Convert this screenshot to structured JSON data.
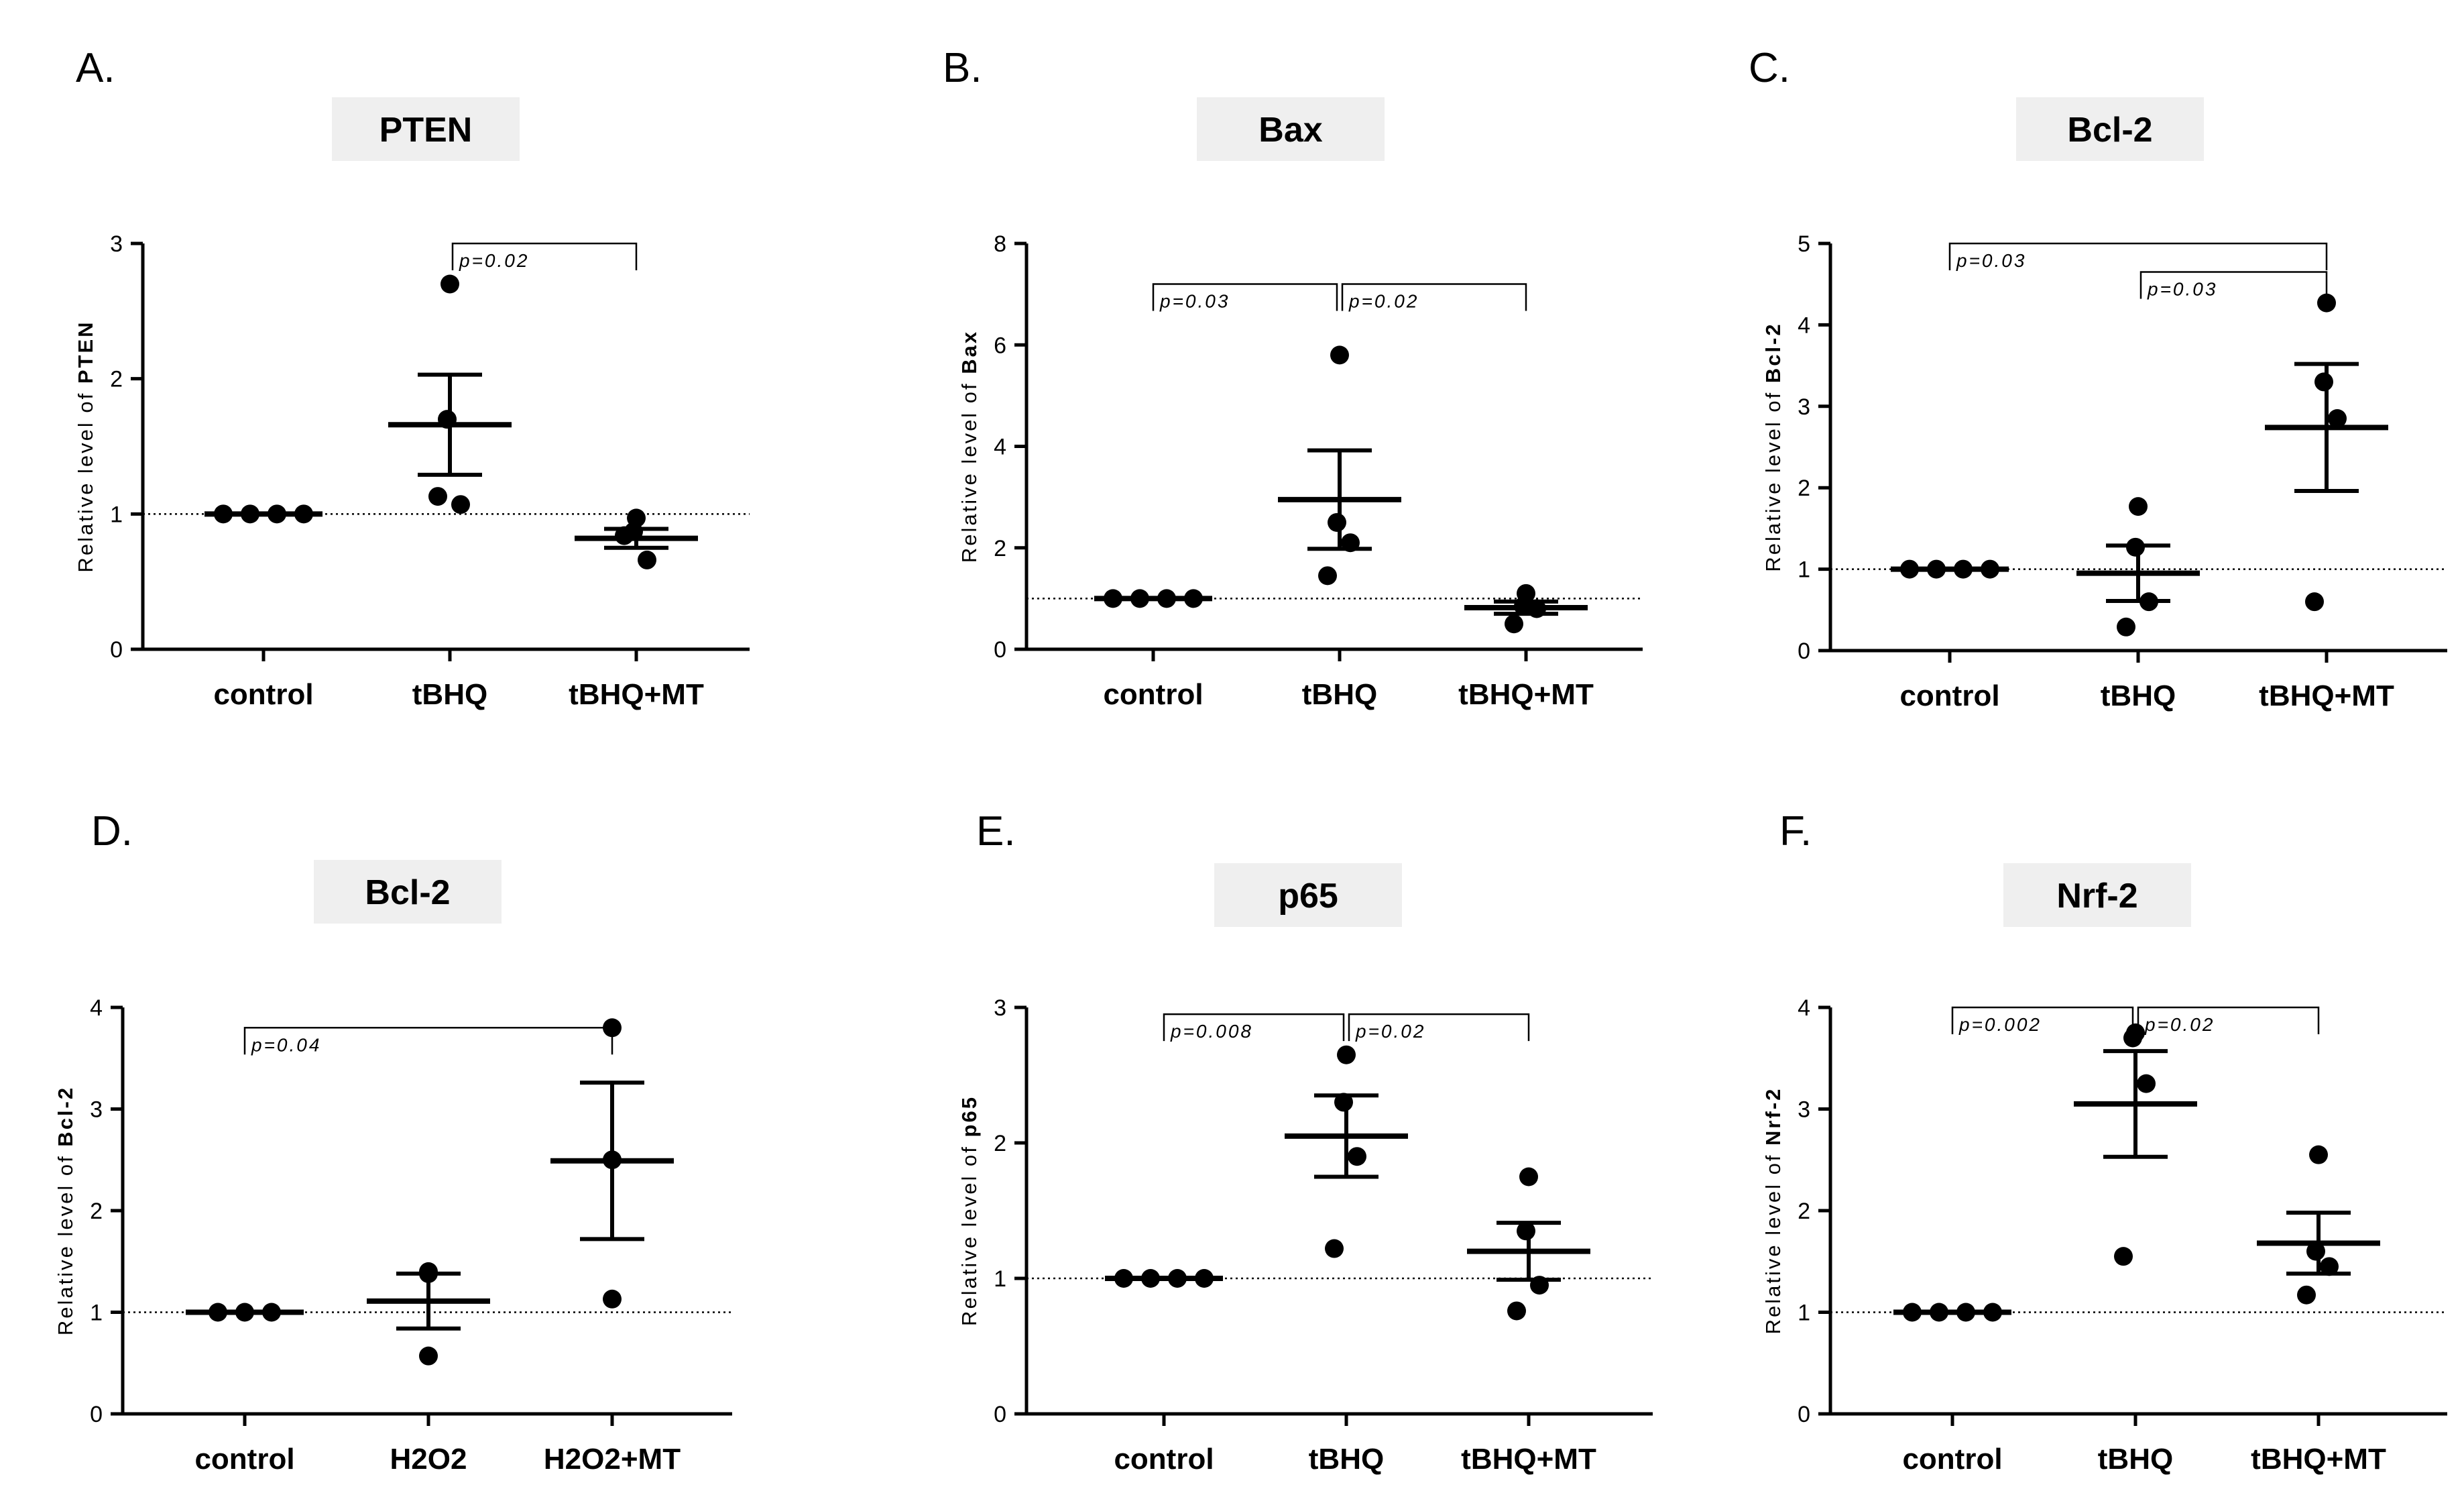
{
  "chart_data": [
    {
      "type": "scatter",
      "panel": "A.",
      "title": "PTEN",
      "ylabel_prefix": "Relative level of ",
      "ylabel_target": "PTEN",
      "ylim": [
        0,
        3
      ],
      "yticks": [
        0,
        1,
        2,
        3
      ],
      "categories": [
        "control",
        "tBHQ",
        "tBHQ+MT"
      ],
      "points": [
        [
          1,
          1,
          1,
          1
        ],
        [
          2.7,
          1.7,
          1.07,
          1.13
        ],
        [
          0.97,
          0.87,
          0.66,
          0.84
        ]
      ],
      "mean": [
        1.0,
        1.66,
        0.82
      ],
      "sem": [
        0.0,
        0.37,
        0.07
      ],
      "reference_line": 1,
      "comparisons": [
        {
          "from": 1,
          "to": 2,
          "label": "p=0.02",
          "level": 3.0
        }
      ]
    },
    {
      "type": "scatter",
      "panel": "B.",
      "title": "Bax",
      "ylabel_prefix": "Relative level of ",
      "ylabel_target": "Bax",
      "ylim": [
        0,
        8
      ],
      "yticks": [
        0,
        2,
        4,
        6,
        8
      ],
      "categories": [
        "control",
        "tBHQ",
        "tBHQ+MT"
      ],
      "points": [
        [
          1,
          1,
          1,
          1
        ],
        [
          5.8,
          2.5,
          2.1,
          1.45
        ],
        [
          1.1,
          0.85,
          0.8,
          0.5
        ]
      ],
      "mean": [
        1.0,
        2.95,
        0.82
      ],
      "sem": [
        0.0,
        0.97,
        0.12
      ],
      "reference_line": 1,
      "comparisons": [
        {
          "from": 0,
          "to": 1,
          "label": "p=0.03",
          "level": 7.2
        },
        {
          "from": 1,
          "to": 2,
          "label": "p=0.02",
          "level": 7.2
        }
      ]
    },
    {
      "type": "scatter",
      "panel": "C.",
      "title": "Bcl-2",
      "ylabel_prefix": "Relative level of ",
      "ylabel_target": "Bcl-2",
      "ylim": [
        0,
        5
      ],
      "yticks": [
        0,
        1,
        2,
        3,
        4,
        5
      ],
      "categories": [
        "control",
        "tBHQ",
        "tBHQ+MT"
      ],
      "points": [
        [
          1,
          1,
          1,
          1
        ],
        [
          1.77,
          1.27,
          0.6,
          0.29
        ],
        [
          4.27,
          3.3,
          2.85,
          0.6
        ]
      ],
      "mean": [
        1.0,
        0.95,
        2.74
      ],
      "sem": [
        0.0,
        0.34,
        0.78
      ],
      "reference_line": 1,
      "comparisons": [
        {
          "from": 0,
          "to": 2,
          "label": "p=0.03",
          "level": 5.0
        },
        {
          "from": 1,
          "to": 2,
          "label": "p=0.03",
          "level": 4.65
        }
      ]
    },
    {
      "type": "scatter",
      "panel": "D.",
      "title": "Bcl-2",
      "ylabel_prefix": "Relative level of ",
      "ylabel_target": "Bcl-2",
      "ylim": [
        0,
        4
      ],
      "yticks": [
        0,
        1,
        2,
        3,
        4
      ],
      "categories": [
        "control",
        "H2O2",
        "H2O2+MT"
      ],
      "points": [
        [
          1,
          1,
          1
        ],
        [
          1.4,
          1.38,
          0.57
        ],
        [
          3.8,
          2.5,
          1.13
        ]
      ],
      "mean": [
        1.0,
        1.11,
        2.49
      ],
      "sem": [
        0.0,
        0.27,
        0.77
      ],
      "reference_line": 1,
      "comparisons": [
        {
          "from": 0,
          "to": 2,
          "label": "p=0.04",
          "level": 3.8
        }
      ]
    },
    {
      "type": "scatter",
      "panel": "E.",
      "title": "p65",
      "ylabel_prefix": "Relative level of ",
      "ylabel_target": "p65",
      "ylim": [
        0,
        3
      ],
      "yticks": [
        0,
        1,
        2,
        3
      ],
      "categories": [
        "control",
        "tBHQ",
        "tBHQ+MT"
      ],
      "points": [
        [
          1,
          1,
          1,
          1
        ],
        [
          2.65,
          2.3,
          1.9,
          1.22
        ],
        [
          1.75,
          1.35,
          0.95,
          0.76
        ]
      ],
      "mean": [
        1.0,
        2.05,
        1.2
      ],
      "sem": [
        0.0,
        0.3,
        0.21
      ],
      "reference_line": 1,
      "comparisons": [
        {
          "from": 0,
          "to": 1,
          "label": "p=0.008",
          "level": 2.95
        },
        {
          "from": 1,
          "to": 2,
          "label": "p=0.02",
          "level": 2.95
        }
      ]
    },
    {
      "type": "scatter",
      "panel": "F.",
      "title": "Nrf-2",
      "ylabel_prefix": "Relative level of ",
      "ylabel_target": "Nrf-2",
      "ylim": [
        0,
        4
      ],
      "yticks": [
        0,
        1,
        2,
        3,
        4
      ],
      "categories": [
        "control",
        "tBHQ",
        "tBHQ+MT"
      ],
      "points": [
        [
          1,
          1,
          1,
          1
        ],
        [
          3.75,
          3.7,
          3.25,
          1.55
        ],
        [
          2.55,
          1.6,
          1.45,
          1.17
        ]
      ],
      "mean": [
        1.0,
        3.05,
        1.68
      ],
      "sem": [
        0.0,
        0.52,
        0.3
      ],
      "reference_line": 1,
      "comparisons": [
        {
          "from": 0,
          "to": 1,
          "label": "p=0.002",
          "level": 4.0
        },
        {
          "from": 1,
          "to": 2,
          "label": "p=0.02",
          "level": 4.0
        }
      ]
    }
  ]
}
